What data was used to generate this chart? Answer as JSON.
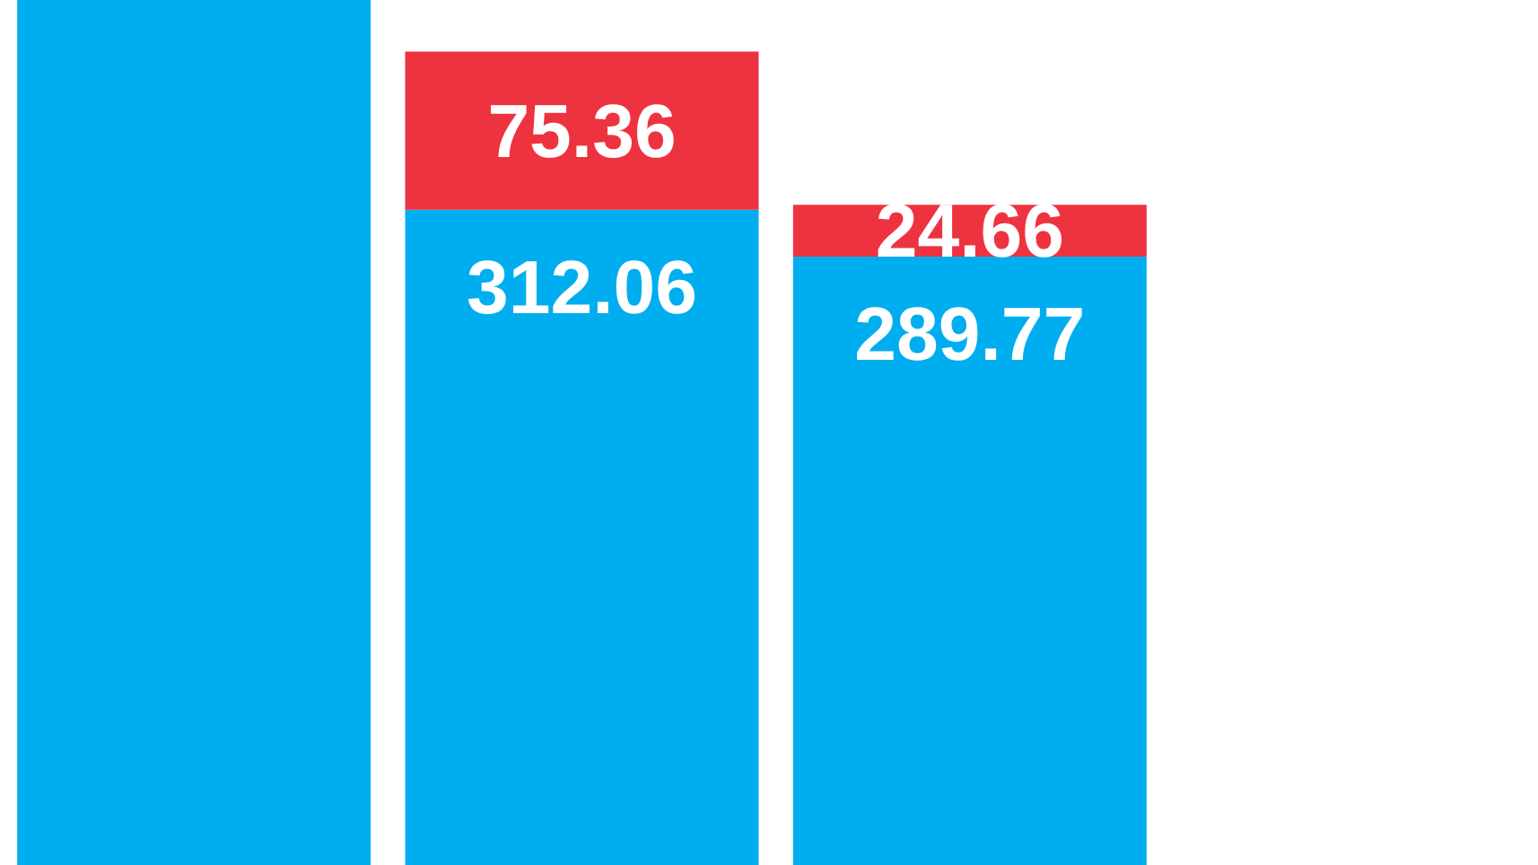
{
  "chart_data": {
    "type": "bar",
    "stacked": true,
    "categories": [
      null,
      null,
      null
    ],
    "series": [
      {
        "color": "#00aeef",
        "values": [
          412,
          312.06,
          289.77
        ],
        "value_labels": [
          null,
          "312.06",
          "289.77"
        ]
      },
      {
        "color": "#ee3340",
        "values": [
          null,
          75.36,
          24.66
        ],
        "value_labels": [
          null,
          "75.36",
          "24.66"
        ]
      }
    ],
    "ylim": [
      0,
      412
    ],
    "tick_labels": false,
    "grid": false
  }
}
